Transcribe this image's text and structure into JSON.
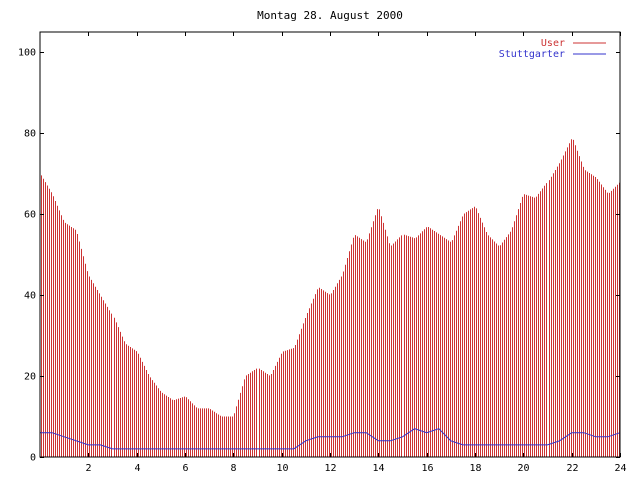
{
  "chart_data": {
    "type": "bar",
    "title": "Montag 28. August 2000",
    "xlim": [
      0,
      24
    ],
    "ylim": [
      0,
      105
    ],
    "x_ticks": [
      "2",
      "4",
      "6",
      "8",
      "10",
      "12",
      "14",
      "16",
      "18",
      "20",
      "22",
      "24"
    ],
    "y_ticks": [
      "0",
      "20",
      "40",
      "60",
      "80",
      "100"
    ],
    "legend_position": "top-right",
    "grid": false,
    "series": [
      {
        "name": "User",
        "style": "impulses",
        "color": "#cc3333",
        "x": [
          0,
          0.5,
          1,
          1.5,
          2,
          2.5,
          3,
          3.5,
          4,
          4.5,
          5,
          5.5,
          6,
          6.5,
          7,
          7.5,
          8,
          8.5,
          9,
          9.5,
          10,
          10.5,
          11,
          11.5,
          12,
          12.5,
          13,
          13.5,
          14,
          14.5,
          15,
          15.5,
          16,
          16.5,
          17,
          17.5,
          18,
          18.5,
          19,
          19.5,
          20,
          20.5,
          21,
          21.5,
          22,
          22.5,
          23,
          23.5,
          24
        ],
        "values": [
          70,
          65,
          58,
          56,
          45,
          40,
          35,
          28,
          26,
          20,
          16,
          14,
          15,
          12,
          12,
          10,
          10,
          20,
          22,
          20,
          26,
          27,
          35,
          42,
          40,
          45,
          55,
          53,
          62,
          52,
          55,
          54,
          57,
          55,
          53,
          60,
          62,
          55,
          52,
          56,
          65,
          64,
          68,
          73,
          79,
          71,
          69,
          65,
          68
        ]
      },
      {
        "name": "Stuttgarter",
        "style": "line",
        "color": "#3333cc",
        "x": [
          0,
          0.5,
          1,
          1.5,
          2,
          2.5,
          3,
          3.5,
          4,
          4.5,
          5,
          5.5,
          6,
          6.5,
          7,
          7.5,
          8,
          8.5,
          9,
          9.5,
          10,
          10.5,
          11,
          11.5,
          12,
          12.5,
          13,
          13.5,
          14,
          14.5,
          15,
          15.5,
          16,
          16.5,
          17,
          17.5,
          18,
          18.5,
          19,
          19.5,
          20,
          20.5,
          21,
          21.5,
          22,
          22.5,
          23,
          23.5,
          24
        ],
        "values": [
          6,
          6,
          5,
          4,
          3,
          3,
          2,
          2,
          2,
          2,
          2,
          2,
          2,
          2,
          2,
          2,
          2,
          2,
          2,
          2,
          2,
          2,
          4,
          5,
          5,
          5,
          6,
          6,
          4,
          4,
          5,
          7,
          6,
          7,
          4,
          3,
          3,
          3,
          3,
          3,
          3,
          3,
          3,
          4,
          6,
          6,
          5,
          5,
          6
        ]
      }
    ]
  }
}
